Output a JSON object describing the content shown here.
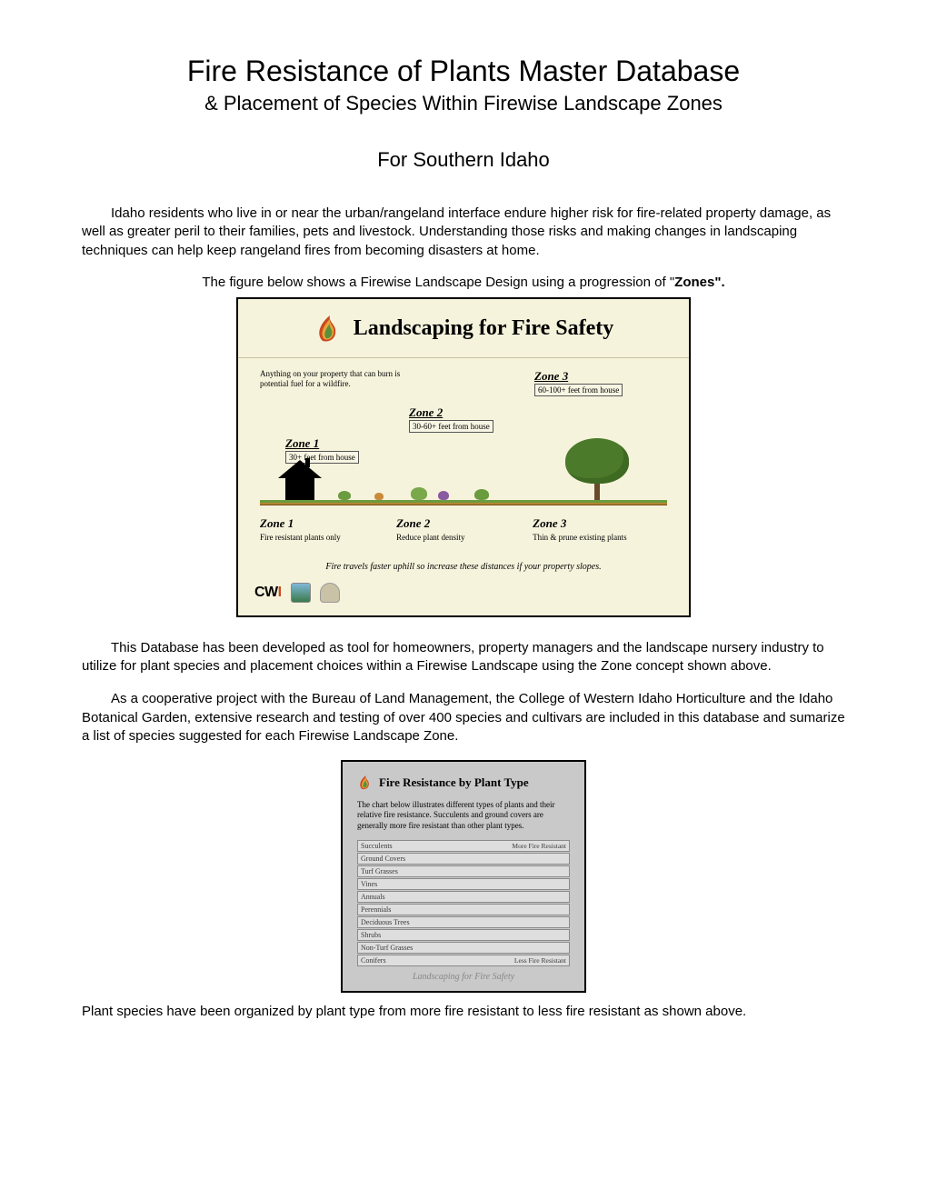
{
  "page": {
    "bg": "#ffffff",
    "text_color": "#000000"
  },
  "title": {
    "main": "Fire Resistance of Plants Master Database",
    "sub": "& Placement of Species Within Firewise Landscape Zones",
    "region": "For Southern Idaho"
  },
  "paragraphs": {
    "intro": "Idaho residents who live in or near the urban/rangeland interface endure higher risk for fire-related property damage, as well as greater peril to their families, pets and livestock. Understanding those risks and making changes in landscaping techniques can help keep rangeland fires from becoming disasters at home.",
    "fig_caption_pre": "The figure below shows a Firewise Landscape Design using a progression of \"",
    "fig_caption_bold": "Zones\".",
    "db_purpose": "This Database has been developed as tool for homeowners, property managers and the landscape nursery industry to utilize for plant species and placement choices within a Firewise Landscape using the Zone concept shown above.",
    "coop": "As a cooperative project with the Bureau of Land Management, the College of Western Idaho Horticulture and the Idaho Botanical Garden, extensive research and testing of over 400 species and cultivars are included in this database and sumarize a list of species suggested for each Firewise Landscape Zone.",
    "closing": "Plant species have been organized by plant type from more fire resistant to less fire resistant as shown above."
  },
  "infographic1": {
    "type": "infographic",
    "bg": "#f6f3dc",
    "border": "#000000",
    "heading": "Landscaping for Fire Safety",
    "heading_font": "Georgia",
    "flame_colors": {
      "outer": "#c94a1f",
      "mid": "#e8a23a",
      "inner": "#5a8f3a"
    },
    "fuel_note": "Anything on your property that can burn is potential fuel for a wildfire.",
    "zones": [
      {
        "id": 1,
        "label": "Zone 1",
        "range": "30+ feet from house",
        "desc": "Fire resistant plants only"
      },
      {
        "id": 2,
        "label": "Zone 2",
        "range": "30-60+ feet from house",
        "desc": "Reduce plant density"
      },
      {
        "id": 3,
        "label": "Zone 3",
        "range": "60-100+ feet from house",
        "desc": "Thin & prune existing plants"
      }
    ],
    "ground_colors": {
      "grass": "#6b9b3f",
      "soil": "#b3852f"
    },
    "house_color": "#000000",
    "shrub_colors": [
      "#6b9b3f",
      "#7aa84a",
      "#8a5aa0",
      "#c98b3a"
    ],
    "tree_colors": {
      "trunk": "#6b4a2a",
      "crown": "#4a7a2a"
    },
    "footnote": "Fire travels faster uphill so increase these distances if your property slopes.",
    "logos": {
      "cwi": "CWI"
    }
  },
  "infographic2": {
    "type": "bar",
    "bg": "#c9c9c9",
    "border": "#000000",
    "heading": "Fire Resistance by Plant Type",
    "desc": "The chart below illustrates different types of plants and their relative fire resistance. Succulents and ground covers are generally more fire resistant than other plant types.",
    "top_label": "More Fire Resistant",
    "bottom_label": "Less Fire Resistant",
    "bar_bg": "#dedede",
    "bar_border": "#8a8a8a",
    "rows": [
      "Succulents",
      "Ground Covers",
      "Turf Grasses",
      "Vines",
      "Annuals",
      "Perennials",
      "Deciduous Trees",
      "Shrubs",
      "Non-Turf Grasses",
      "Conifers"
    ],
    "footer": "Landscaping for Fire Safety"
  }
}
